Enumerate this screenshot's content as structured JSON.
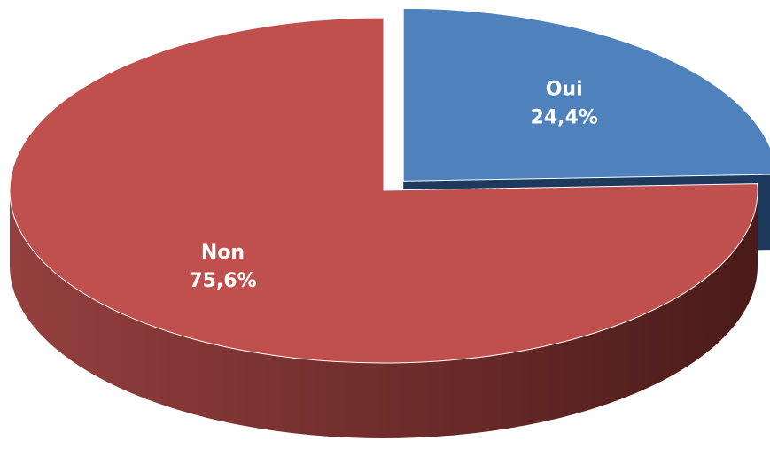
{
  "chart_data": {
    "type": "pie",
    "categories": [
      "Oui",
      "Non"
    ],
    "values": [
      24.4,
      75.6
    ],
    "value_labels": [
      "24,4%",
      "75,6%"
    ],
    "colors": [
      "#4f81bd",
      "#c0504d"
    ]
  }
}
